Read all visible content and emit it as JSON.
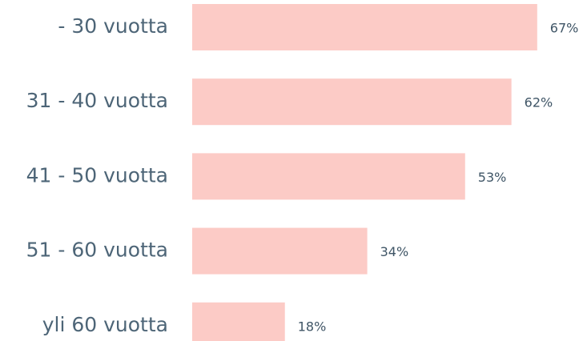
{
  "chart_data": {
    "type": "bar",
    "orientation": "horizontal",
    "categories": [
      "- 30 vuotta",
      "31 - 40 vuotta",
      "41 - 50 vuotta",
      "51 - 60 vuotta",
      "yli 60 vuotta"
    ],
    "values": [
      67,
      62,
      53,
      34,
      18
    ],
    "value_labels": [
      "67%",
      "62%",
      "53%",
      "34%",
      "18%"
    ],
    "color": "#fccbc6"
  }
}
